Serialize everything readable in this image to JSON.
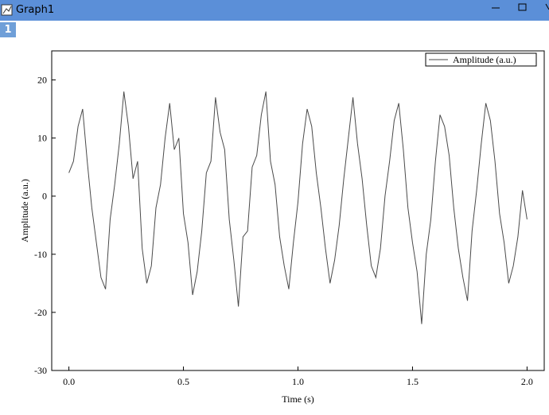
{
  "window_title": "Graph1",
  "tab": "1",
  "chart_data": {
    "type": "line",
    "x_label": "Time (s)",
    "y_label": "Amplitude (a.u.)",
    "x": [
      0,
      0.02,
      0.04,
      0.06,
      0.08,
      0.1,
      0.12,
      0.14,
      0.16,
      0.18,
      0.2,
      0.22,
      0.24,
      0.26,
      0.28,
      0.3,
      0.32,
      0.34,
      0.36,
      0.38,
      0.4,
      0.42,
      0.44,
      0.46,
      0.48,
      0.5,
      0.52,
      0.54,
      0.56,
      0.58,
      0.6,
      0.62,
      0.64,
      0.66,
      0.68,
      0.7,
      0.72,
      0.74,
      0.76,
      0.78,
      0.8,
      0.82,
      0.84,
      0.86,
      0.88,
      0.9,
      0.92,
      0.94,
      0.96,
      0.98,
      1.0,
      1.02,
      1.04,
      1.06,
      1.08,
      1.1,
      1.12,
      1.14,
      1.16,
      1.18,
      1.2,
      1.22,
      1.24,
      1.26,
      1.28,
      1.3,
      1.32,
      1.34,
      1.36,
      1.38,
      1.4,
      1.42,
      1.44,
      1.46,
      1.48,
      1.5,
      1.52,
      1.54,
      1.56,
      1.58,
      1.6,
      1.62,
      1.64,
      1.66,
      1.68,
      1.7,
      1.72,
      1.74,
      1.76,
      1.78,
      1.8,
      1.82,
      1.84,
      1.86,
      1.88,
      1.9,
      1.92,
      1.94,
      1.96,
      1.98,
      2.0
    ],
    "series": [
      {
        "name": "Amplitude (a.u.)",
        "color": "#4a4a4a",
        "values": [
          4,
          6,
          12,
          15,
          6,
          -2,
          -8,
          -14,
          -16,
          -4,
          2,
          9,
          18,
          12,
          3,
          6,
          -9,
          -15,
          -12,
          -2,
          2,
          10,
          16,
          8,
          10,
          -3,
          -8,
          -17,
          -13,
          -6,
          4,
          6,
          17,
          11,
          8,
          -4,
          -11,
          -19,
          -7,
          -6,
          5,
          7,
          14,
          18,
          6,
          2,
          -7,
          -12,
          -16,
          -8,
          -1,
          9,
          15,
          12,
          4,
          -2,
          -9,
          -15,
          -11,
          -5,
          3,
          10,
          17,
          9,
          3,
          -5,
          -12,
          -14,
          -9,
          0,
          6,
          13,
          16,
          8,
          -2,
          -8,
          -13,
          -22,
          -10,
          -4,
          6,
          14,
          12,
          7,
          -2,
          -9,
          -14,
          -18,
          -6,
          1,
          9,
          16,
          13,
          6,
          -3,
          -8,
          -15,
          -12,
          -7,
          1,
          -4
        ]
      }
    ],
    "xlim": [
      -0.075,
      2.075
    ],
    "ylim": [
      -30,
      25
    ],
    "xticks": [
      {
        "value": 0,
        "label": "0.0"
      },
      {
        "value": 0.5,
        "label": "0.5"
      },
      {
        "value": 1,
        "label": "1.0"
      },
      {
        "value": 1.5,
        "label": "1.5"
      },
      {
        "value": 2,
        "label": "2.0"
      }
    ],
    "yticks": [
      -30,
      -20,
      -10,
      0,
      10,
      20
    ],
    "legend": "top-right"
  }
}
